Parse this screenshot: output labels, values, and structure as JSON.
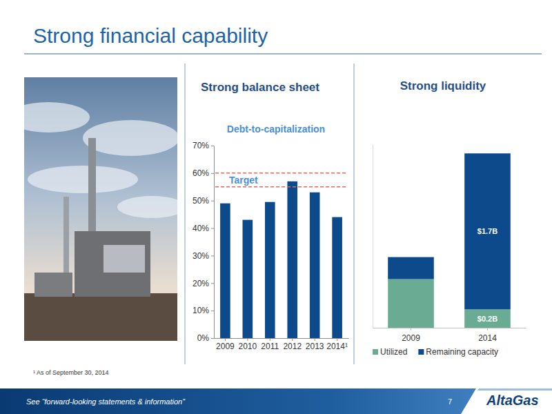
{
  "slide": {
    "title": "Strong financial capability",
    "footnote": "¹ As of September 30, 2014",
    "footer": "See “forward-looking statements & information”",
    "page": 7,
    "logo": "AltaGas"
  },
  "chart_data": [
    {
      "type": "bar",
      "title": "Strong balance sheet",
      "subtitle": "Debt-to-capitalization",
      "categories": [
        "2009",
        "2010",
        "2011",
        "2012",
        "2013",
        "2014¹"
      ],
      "values": [
        49,
        43,
        49.5,
        57,
        53,
        44
      ],
      "color": "#0d4a8b",
      "ylim": [
        0,
        70
      ],
      "yticks": [
        {
          "value": 0,
          "label": "0%"
        },
        {
          "value": 10,
          "label": "10%"
        },
        {
          "value": 20,
          "label": "20%"
        },
        {
          "value": 30,
          "label": "30%"
        },
        {
          "value": 40,
          "label": "40%"
        },
        {
          "value": 50,
          "label": "50%"
        },
        {
          "value": 60,
          "label": "60%"
        },
        {
          "value": 70,
          "label": "70%"
        }
      ],
      "grid": false,
      "annotations": [
        {
          "text": "Target",
          "y": [
            55,
            60
          ]
        }
      ]
    },
    {
      "type": "bar",
      "title": "Strong liquidity",
      "stacked": true,
      "categories": [
        "2009",
        "2014"
      ],
      "series": [
        {
          "name": "Utilized",
          "color": "#6aab94",
          "values": [
            0.53,
            0.2
          ],
          "value_labels": [
            null,
            "$0.2B"
          ]
        },
        {
          "name": "Remaining capacity",
          "color": "#0d4a8b",
          "values": [
            0.24,
            1.7
          ],
          "value_labels": [
            null,
            "$1.7B"
          ]
        }
      ],
      "ylim": [
        0,
        2
      ],
      "data_labels": true,
      "legend": "bottom",
      "tick_labels": "x",
      "grid": false
    }
  ]
}
